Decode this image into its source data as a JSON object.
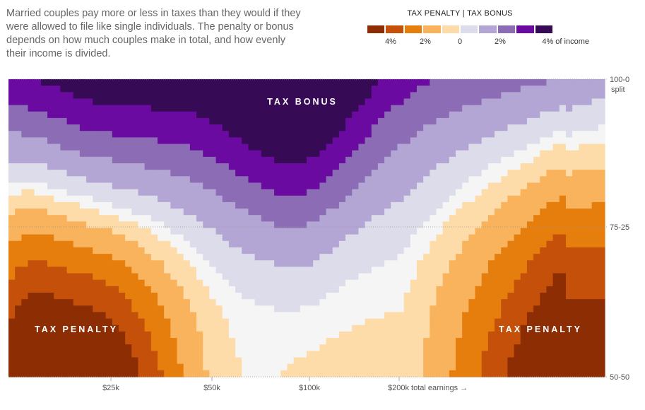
{
  "intro_text": "Married couples pay more or less in taxes than they would if they were allowed to file like single individuals. The penalty or bonus depends on how much couples make in total, and how evenly their income is divided.",
  "legend": {
    "title_left": "TAX PENALTY",
    "title_sep": "|",
    "title_right": "TAX BONUS",
    "colors": [
      "#8c2d04",
      "#c4500a",
      "#e67e0e",
      "#f8b35c",
      "#fddcaa",
      "#dcdcea",
      "#b4a6d4",
      "#8c6cb4",
      "#6a0aa0",
      "#360a55"
    ],
    "ticks": [
      "4%",
      "2%",
      "0",
      "2%",
      "4% of income"
    ]
  },
  "chart_data": {
    "type": "heatmap",
    "xlabel": "total earnings",
    "ylabel": "split",
    "x_ticks": [
      "$25k",
      "$50k",
      "$100k",
      "$200k"
    ],
    "x_tick_suffix": "total earnings →",
    "y_ticks": [
      "100-0",
      "75-25",
      "50-50"
    ],
    "y_axis_word": "split",
    "annotations": [
      "TAX BONUS",
      "TAX PENALTY",
      "TAX PENALTY"
    ],
    "color_scale_percent": [
      -4,
      -3,
      -2,
      -1,
      -0.2,
      0.2,
      1,
      2,
      3,
      4
    ],
    "contours": {
      "bonus_4pct_bottom_split": [
        0.93,
        0.86,
        0.82,
        0.8,
        0.81,
        0.85,
        0.87,
        0.85,
        0.83,
        0.79,
        0.77,
        0.79,
        0.83,
        0.9,
        0.99,
        1.0,
        1.0,
        1.0,
        1.0,
        1.0
      ],
      "penalty_edge_low_income_split": [
        0.8,
        0.72,
        0.66,
        0.61,
        0.58,
        0.54,
        0.52,
        0.5
      ],
      "penalty_edge_high_income_split": [
        0.5,
        0.55,
        0.62,
        0.7,
        0.78,
        0.84,
        0.88,
        0.9
      ]
    }
  }
}
